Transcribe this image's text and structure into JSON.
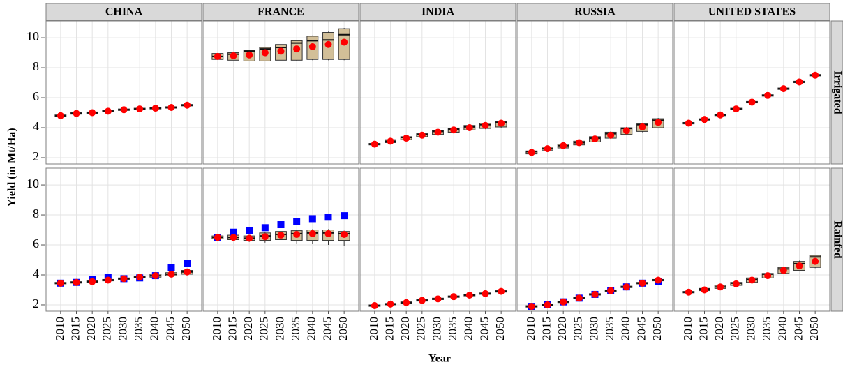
{
  "chart_data": {
    "type": "boxplot",
    "y_label": "Yield (in Mt/Ha)",
    "x_label": "Year",
    "columns": [
      "CHINA",
      "FRANCE",
      "INDIA",
      "RUSSIA",
      "UNITED STATES"
    ],
    "rows": [
      "Irrigated",
      "Rainfed"
    ],
    "categories": [
      "2010",
      "2015",
      "2020",
      "2025",
      "2030",
      "2035",
      "2040",
      "2045",
      "2050"
    ],
    "ylim": [
      1.58,
      11.12
    ],
    "yticks": [
      2,
      4,
      6,
      8,
      10
    ],
    "grid": true,
    "box_color": "#d2bf98",
    "mean_color": "#ff0000",
    "alt_color": "#0000ff",
    "panels": [
      [
        {
          "min": [
            4.75,
            4.9,
            4.95,
            5.05,
            5.15,
            5.2,
            5.25,
            5.3,
            5.45
          ],
          "q1": [
            4.75,
            4.9,
            4.95,
            5.05,
            5.15,
            5.2,
            5.25,
            5.3,
            5.45
          ],
          "median": [
            4.8,
            4.95,
            5.0,
            5.1,
            5.2,
            5.25,
            5.3,
            5.35,
            5.5
          ],
          "q3": [
            4.85,
            5.0,
            5.05,
            5.15,
            5.25,
            5.3,
            5.35,
            5.4,
            5.55
          ],
          "max": [
            4.85,
            5.0,
            5.05,
            5.15,
            5.25,
            5.3,
            5.35,
            5.4,
            5.55
          ],
          "mean": [
            4.8,
            4.95,
            5.0,
            5.1,
            5.2,
            5.25,
            5.3,
            5.35,
            5.5
          ]
        },
        {
          "min": [
            8.55,
            8.5,
            8.45,
            8.45,
            8.45,
            8.45,
            8.5,
            8.5,
            8.5
          ],
          "q1": [
            8.55,
            8.5,
            8.45,
            8.45,
            8.5,
            8.5,
            8.55,
            8.55,
            8.55
          ],
          "median": [
            8.75,
            8.9,
            9.1,
            9.25,
            9.35,
            9.65,
            9.8,
            9.85,
            10.2
          ],
          "q3": [
            8.95,
            9.0,
            9.15,
            9.35,
            9.55,
            9.8,
            10.1,
            10.35,
            10.6
          ],
          "max": [
            8.95,
            9.0,
            9.2,
            9.4,
            9.6,
            9.85,
            10.15,
            10.4,
            10.65
          ],
          "mean": [
            8.75,
            8.8,
            8.85,
            9.0,
            9.1,
            9.25,
            9.4,
            9.55,
            9.7
          ]
        },
        {
          "min": [
            2.8,
            2.95,
            3.15,
            3.35,
            3.5,
            3.65,
            3.8,
            3.9,
            4.0
          ],
          "q1": [
            2.85,
            3.0,
            3.2,
            3.4,
            3.55,
            3.7,
            3.85,
            3.95,
            4.05
          ],
          "median": [
            2.9,
            3.1,
            3.35,
            3.55,
            3.75,
            3.9,
            4.05,
            4.2,
            4.35
          ],
          "q3": [
            2.95,
            3.2,
            3.4,
            3.6,
            3.8,
            3.95,
            4.15,
            4.3,
            4.4
          ],
          "max": [
            3.0,
            3.25,
            3.45,
            3.65,
            3.85,
            4.0,
            4.2,
            4.35,
            4.5
          ],
          "mean": [
            2.9,
            3.1,
            3.3,
            3.5,
            3.7,
            3.85,
            4.0,
            4.15,
            4.3
          ]
        },
        {
          "min": [
            2.2,
            2.45,
            2.6,
            2.8,
            3.0,
            3.25,
            3.5,
            3.7,
            3.95
          ],
          "q1": [
            2.25,
            2.5,
            2.65,
            2.85,
            3.05,
            3.3,
            3.55,
            3.75,
            4.0
          ],
          "median": [
            2.4,
            2.6,
            2.8,
            3.0,
            3.3,
            3.6,
            3.95,
            4.2,
            4.5
          ],
          "q3": [
            2.45,
            2.7,
            2.9,
            3.1,
            3.4,
            3.7,
            4.0,
            4.25,
            4.6
          ],
          "max": [
            2.5,
            2.75,
            2.95,
            3.15,
            3.45,
            3.75,
            4.05,
            4.3,
            4.65
          ],
          "mean": [
            2.35,
            2.6,
            2.8,
            3.0,
            3.25,
            3.5,
            3.8,
            4.05,
            4.35
          ]
        },
        {
          "min": [
            4.25,
            4.5,
            4.8,
            5.2,
            5.65,
            6.1,
            6.55,
            7.0,
            7.45
          ],
          "q1": [
            4.25,
            4.5,
            4.8,
            5.2,
            5.65,
            6.1,
            6.55,
            7.0,
            7.45
          ],
          "median": [
            4.3,
            4.55,
            4.85,
            5.25,
            5.7,
            6.15,
            6.6,
            7.05,
            7.5
          ],
          "q3": [
            4.35,
            4.6,
            4.9,
            5.3,
            5.75,
            6.2,
            6.65,
            7.1,
            7.55
          ],
          "max": [
            4.35,
            4.6,
            4.9,
            5.3,
            5.75,
            6.2,
            6.65,
            7.1,
            7.55
          ],
          "mean": [
            4.3,
            4.55,
            4.85,
            5.25,
            5.7,
            6.15,
            6.6,
            7.05,
            7.5
          ]
        }
      ],
      [
        {
          "min": [
            3.4,
            3.45,
            3.5,
            3.6,
            3.7,
            3.8,
            3.85,
            3.95,
            4.05
          ],
          "q1": [
            3.4,
            3.45,
            3.5,
            3.6,
            3.7,
            3.8,
            3.85,
            3.95,
            4.05
          ],
          "median": [
            3.45,
            3.5,
            3.55,
            3.65,
            3.75,
            3.85,
            3.95,
            4.05,
            4.2
          ],
          "q3": [
            3.5,
            3.55,
            3.6,
            3.7,
            3.8,
            3.9,
            4.05,
            4.15,
            4.3
          ],
          "max": [
            3.5,
            3.55,
            3.6,
            3.7,
            3.8,
            3.9,
            4.05,
            4.15,
            4.3
          ],
          "mean": [
            3.45,
            3.5,
            3.55,
            3.65,
            3.75,
            3.85,
            3.95,
            4.05,
            4.2
          ],
          "alt": [
            3.45,
            3.5,
            3.7,
            3.85,
            3.75,
            3.8,
            3.95,
            4.5,
            4.75
          ]
        },
        {
          "min": [
            6.35,
            6.3,
            6.2,
            6.15,
            6.1,
            6.1,
            6.05,
            6.0,
            5.95
          ],
          "q1": [
            6.4,
            6.35,
            6.3,
            6.3,
            6.35,
            6.3,
            6.3,
            6.3,
            6.3
          ],
          "median": [
            6.5,
            6.5,
            6.45,
            6.6,
            6.7,
            6.75,
            6.8,
            6.8,
            6.75
          ],
          "q3": [
            6.6,
            6.65,
            6.6,
            6.8,
            6.9,
            6.95,
            7.0,
            7.0,
            6.9
          ],
          "max": [
            6.6,
            6.65,
            6.6,
            6.85,
            6.95,
            7.0,
            7.05,
            7.05,
            6.95
          ],
          "mean": [
            6.5,
            6.5,
            6.45,
            6.55,
            6.65,
            6.7,
            6.75,
            6.75,
            6.7
          ],
          "alt": [
            6.5,
            6.85,
            6.95,
            7.15,
            7.35,
            7.55,
            7.75,
            7.85,
            7.95
          ]
        },
        {
          "min": [
            1.9,
            2.0,
            2.1,
            2.25,
            2.35,
            2.5,
            2.6,
            2.7,
            2.85
          ],
          "q1": [
            1.9,
            2.0,
            2.1,
            2.25,
            2.35,
            2.5,
            2.6,
            2.7,
            2.85
          ],
          "median": [
            1.95,
            2.05,
            2.15,
            2.3,
            2.4,
            2.55,
            2.65,
            2.75,
            2.9
          ],
          "q3": [
            2.0,
            2.1,
            2.2,
            2.35,
            2.45,
            2.6,
            2.7,
            2.8,
            2.95
          ],
          "max": [
            2.0,
            2.1,
            2.2,
            2.35,
            2.45,
            2.6,
            2.7,
            2.8,
            2.95
          ],
          "mean": [
            1.95,
            2.05,
            2.15,
            2.3,
            2.4,
            2.55,
            2.65,
            2.75,
            2.9
          ]
        },
        {
          "min": [
            1.85,
            1.95,
            2.15,
            2.4,
            2.65,
            2.9,
            3.15,
            3.4,
            3.6
          ],
          "q1": [
            1.85,
            1.95,
            2.15,
            2.4,
            2.65,
            2.9,
            3.15,
            3.4,
            3.6
          ],
          "median": [
            1.9,
            2.0,
            2.2,
            2.45,
            2.7,
            2.95,
            3.2,
            3.45,
            3.65
          ],
          "q3": [
            1.95,
            2.05,
            2.25,
            2.5,
            2.75,
            3.0,
            3.25,
            3.5,
            3.7
          ],
          "max": [
            1.95,
            2.05,
            2.25,
            2.5,
            2.75,
            3.0,
            3.25,
            3.5,
            3.7
          ],
          "mean": [
            1.9,
            2.0,
            2.2,
            2.45,
            2.7,
            2.95,
            3.2,
            3.45,
            3.65
          ],
          "alt": [
            1.9,
            2.0,
            2.2,
            2.45,
            2.7,
            2.95,
            3.2,
            3.45,
            3.55
          ]
        },
        {
          "min": [
            2.75,
            2.9,
            3.05,
            3.25,
            3.45,
            3.75,
            4.05,
            4.25,
            4.45
          ],
          "q1": [
            2.8,
            2.95,
            3.1,
            3.3,
            3.5,
            3.8,
            4.1,
            4.3,
            4.5
          ],
          "median": [
            2.85,
            3.05,
            3.2,
            3.45,
            3.7,
            4.05,
            4.4,
            4.75,
            5.2
          ],
          "q3": [
            2.9,
            3.1,
            3.3,
            3.5,
            3.8,
            4.1,
            4.5,
            4.9,
            5.3
          ],
          "max": [
            2.95,
            3.15,
            3.35,
            3.55,
            3.85,
            4.15,
            4.55,
            4.95,
            5.35
          ],
          "mean": [
            2.85,
            3.0,
            3.2,
            3.4,
            3.65,
            3.95,
            4.3,
            4.6,
            4.9
          ]
        }
      ]
    ]
  }
}
